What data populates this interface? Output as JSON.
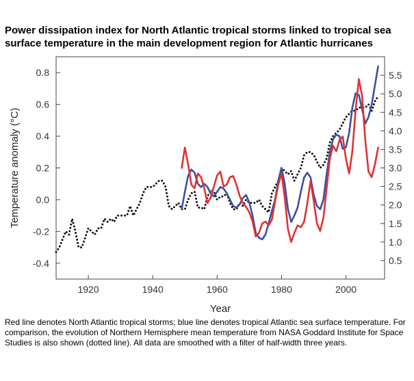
{
  "title": "Power dissipation index for North Atlantic tropical storms linked to tropical sea surface temperature in the main development region for Atlantic hurricanes",
  "caption": "Red line denotes North Atlantic tropical storms; blue line denotes tropical Atlantic sea surface temperature. For comparison, the evolution of Northern Hemisphere mean temperature from NASA Goddard Institute for Space Studies is also shown (dotted line). All data are smoothed with a filter of half-width three years.",
  "chart_data": {
    "type": "line",
    "xlabel": "Year",
    "ylabel": "Temperature anomaly (°C)",
    "y2label": "",
    "xlim": [
      1910,
      2012
    ],
    "ylim": [
      -0.5,
      0.9
    ],
    "y2lim": [
      0.0,
      6.0
    ],
    "xticks": [
      1920,
      1940,
      1960,
      1980,
      2000
    ],
    "yticks": [
      -0.4,
      -0.2,
      0.0,
      0.2,
      0.4,
      0.6,
      0.8
    ],
    "y2ticks": [
      0.5,
      1.0,
      1.5,
      2.0,
      2.5,
      3.0,
      3.5,
      4.0,
      4.5,
      5.0,
      5.5
    ],
    "grid": false,
    "series": [
      {
        "axis": "left",
        "color": "#111111",
        "style": "dotted",
        "x": [
          1910,
          1911,
          1912,
          1913,
          1914,
          1915,
          1916,
          1917,
          1918,
          1919,
          1920,
          1921,
          1922,
          1923,
          1924,
          1925,
          1926,
          1927,
          1928,
          1929,
          1930,
          1931,
          1932,
          1933,
          1934,
          1935,
          1936,
          1937,
          1938,
          1939,
          1940,
          1941,
          1942,
          1943,
          1944,
          1945,
          1946,
          1947,
          1948,
          1949,
          1950,
          1951,
          1952,
          1953,
          1954,
          1955,
          1956,
          1957,
          1958,
          1959,
          1960,
          1961,
          1962,
          1963,
          1964,
          1965,
          1966,
          1967,
          1968,
          1969,
          1970,
          1971,
          1972,
          1973,
          1974,
          1975,
          1976,
          1977,
          1978,
          1979,
          1980,
          1981,
          1982,
          1983,
          1984,
          1985,
          1986,
          1987,
          1988,
          1989,
          1990,
          1991,
          1992,
          1993,
          1994,
          1995,
          1996,
          1997,
          1998,
          1999,
          2000,
          2001,
          2002,
          2003,
          2004,
          2005,
          2006,
          2007,
          2008,
          2009,
          2010
        ],
        "values": [
          -0.33,
          -0.3,
          -0.25,
          -0.2,
          -0.22,
          -0.12,
          -0.2,
          -0.3,
          -0.3,
          -0.24,
          -0.18,
          -0.2,
          -0.22,
          -0.18,
          -0.18,
          -0.12,
          -0.14,
          -0.12,
          -0.14,
          -0.1,
          -0.1,
          -0.1,
          -0.1,
          -0.04,
          -0.1,
          -0.06,
          -0.02,
          0.04,
          0.08,
          0.08,
          0.08,
          0.1,
          0.12,
          0.12,
          0.08,
          -0.04,
          -0.06,
          -0.04,
          -0.02,
          -0.06,
          -0.06,
          0.0,
          0.04,
          0.05,
          -0.05,
          -0.05,
          -0.06,
          0.02,
          0.06,
          0.05,
          0.0,
          0.02,
          0.02,
          0.04,
          -0.02,
          -0.06,
          -0.06,
          -0.02,
          -0.04,
          0.0,
          -0.02,
          -0.02,
          -0.02,
          0.0,
          -0.04,
          -0.06,
          -0.08,
          0.04,
          0.08,
          0.12,
          0.2,
          0.18,
          0.16,
          0.18,
          0.12,
          0.16,
          0.2,
          0.28,
          0.3,
          0.3,
          0.28,
          0.24,
          0.2,
          0.22,
          0.26,
          0.36,
          0.4,
          0.42,
          0.44,
          0.48,
          0.52,
          0.54,
          0.56,
          0.56,
          0.58,
          0.58,
          0.58,
          0.6,
          0.56,
          0.62,
          0.65
        ]
      },
      {
        "axis": "left",
        "color": "#3b4fa0",
        "style": "solid",
        "x": [
          1949,
          1950,
          1951,
          1952,
          1953,
          1954,
          1955,
          1956,
          1957,
          1958,
          1959,
          1960,
          1961,
          1962,
          1963,
          1964,
          1965,
          1966,
          1967,
          1968,
          1969,
          1970,
          1971,
          1972,
          1973,
          1974,
          1975,
          1976,
          1977,
          1978,
          1979,
          1980,
          1981,
          1982,
          1983,
          1984,
          1985,
          1986,
          1987,
          1988,
          1989,
          1990,
          1991,
          1992,
          1993,
          1994,
          1995,
          1996,
          1997,
          1998,
          1999,
          2000,
          2001,
          2002,
          2003,
          2004,
          2005,
          2006,
          2007,
          2008,
          2009,
          2010
        ],
        "values": [
          -0.06,
          0.05,
          0.15,
          0.19,
          0.17,
          0.1,
          0.08,
          0.1,
          0.08,
          0.04,
          0.02,
          0.05,
          0.08,
          0.07,
          0.04,
          0.0,
          -0.04,
          -0.05,
          -0.03,
          0.01,
          0.03,
          -0.02,
          -0.1,
          -0.21,
          -0.24,
          -0.25,
          -0.22,
          -0.15,
          -0.07,
          0.0,
          0.12,
          0.2,
          0.1,
          -0.06,
          -0.14,
          -0.1,
          -0.05,
          0.05,
          0.14,
          0.17,
          0.14,
          0.03,
          -0.04,
          -0.06,
          0.0,
          0.16,
          0.3,
          0.38,
          0.41,
          0.4,
          0.32,
          0.33,
          0.42,
          0.58,
          0.67,
          0.66,
          0.57,
          0.48,
          0.52,
          0.6,
          0.72,
          0.84
        ]
      },
      {
        "axis": "right",
        "color": "#e03131",
        "style": "solid",
        "x": [
          1949,
          1950,
          1951,
          1952,
          1953,
          1954,
          1955,
          1956,
          1957,
          1958,
          1959,
          1960,
          1961,
          1962,
          1963,
          1964,
          1965,
          1966,
          1967,
          1968,
          1969,
          1970,
          1971,
          1972,
          1973,
          1974,
          1975,
          1976,
          1977,
          1978,
          1979,
          1980,
          1981,
          1982,
          1983,
          1984,
          1985,
          1986,
          1987,
          1988,
          1989,
          1990,
          1991,
          1992,
          1993,
          1994,
          1995,
          1996,
          1997,
          1998,
          1999,
          2000,
          2001,
          2002,
          2003,
          2004,
          2005,
          2006,
          2007,
          2008,
          2009,
          2010
        ],
        "values": [
          3.0,
          3.55,
          3.1,
          2.55,
          2.45,
          2.85,
          2.75,
          2.45,
          2.05,
          2.2,
          2.5,
          2.8,
          2.9,
          2.5,
          2.55,
          2.75,
          2.78,
          2.55,
          2.25,
          2.05,
          1.95,
          1.8,
          1.55,
          1.15,
          1.25,
          1.5,
          1.55,
          1.45,
          1.6,
          2.1,
          2.55,
          2.85,
          2.2,
          1.35,
          1.0,
          1.25,
          1.45,
          1.4,
          1.55,
          2.05,
          2.65,
          2.1,
          1.5,
          1.3,
          1.65,
          2.45,
          3.25,
          3.6,
          3.45,
          3.75,
          3.85,
          3.25,
          2.85,
          3.45,
          4.55,
          5.4,
          4.95,
          3.75,
          2.9,
          2.75,
          3.1,
          3.55
        ]
      }
    ]
  }
}
